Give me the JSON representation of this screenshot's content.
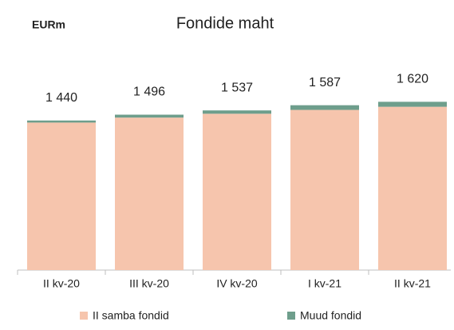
{
  "chart_data": {
    "type": "bar",
    "stacked": true,
    "unit_label": "EURm",
    "title": "Fondide maht",
    "categories": [
      "II kv-20",
      "III kv-20",
      "IV kv-20",
      "I kv-21",
      "II kv-21"
    ],
    "series": [
      {
        "name": "II samba fondid",
        "color": "#f6c5ad",
        "values": [
          1420,
          1468,
          1505,
          1542,
          1572
        ]
      },
      {
        "name": "Muud fondid",
        "color": "#6e9e8c",
        "values": [
          20,
          28,
          32,
          45,
          48
        ]
      }
    ],
    "totals": [
      1440,
      1496,
      1537,
      1587,
      1620
    ],
    "total_labels": [
      "1 440",
      "1 496",
      "1 537",
      "1 587",
      "1 620"
    ],
    "ylim": [
      0,
      1800
    ]
  }
}
